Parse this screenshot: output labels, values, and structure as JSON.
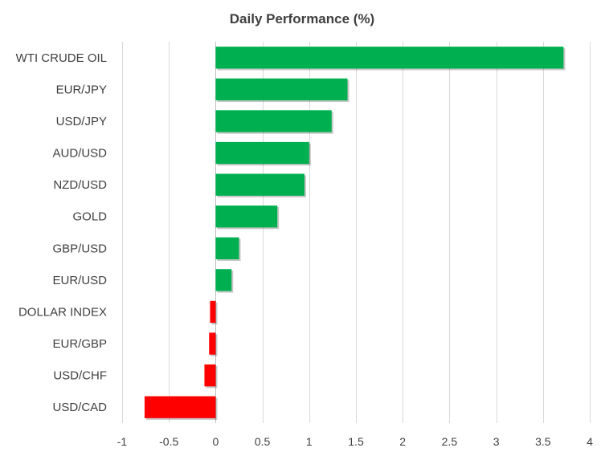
{
  "chart_data": {
    "type": "bar",
    "orientation": "horizontal",
    "title": "Daily Performance  (%)",
    "xlabel": "",
    "ylabel": "",
    "categories": [
      "WTI CRUDE OIL",
      "EUR/JPY",
      "USD/JPY",
      "AUD/USD",
      "NZD/USD",
      "GOLD",
      "GBP/USD",
      "EUR/USD",
      "DOLLAR INDEX",
      "EUR/GBP",
      "USD/CHF",
      "USD/CAD"
    ],
    "values": [
      3.72,
      1.41,
      1.24,
      1.0,
      0.95,
      0.66,
      0.25,
      0.17,
      -0.06,
      -0.07,
      -0.12,
      -0.76
    ],
    "xlim": [
      -1,
      4
    ],
    "ticks": [
      -1,
      -0.5,
      0,
      0.5,
      1,
      1.5,
      2,
      2.5,
      3,
      3.5,
      4
    ],
    "tick_labels": [
      "-1",
      "-0.5",
      "0",
      "0.5",
      "1",
      "1.5",
      "2",
      "2.5",
      "3",
      "3.5",
      "4"
    ],
    "grid": true,
    "legend": "none",
    "colors": {
      "positive": "#00b050",
      "negative": "#ff0000"
    }
  }
}
